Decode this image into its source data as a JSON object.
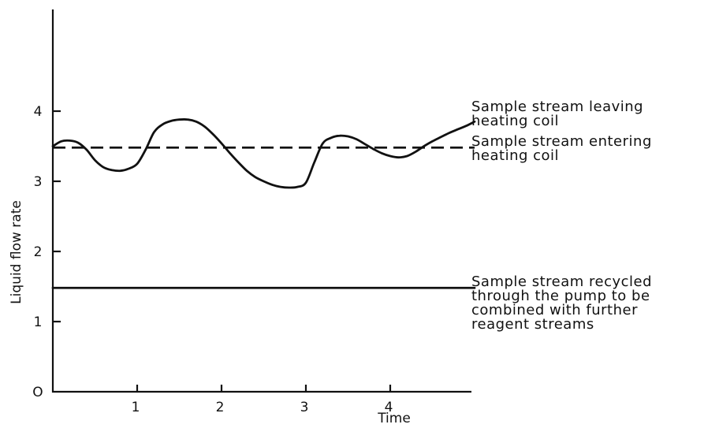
{
  "chart_data": {
    "type": "line",
    "xlabel": "Time",
    "ylabel": "Liquid flow rate",
    "xlim": [
      0,
      5
    ],
    "ylim": [
      0,
      5
    ],
    "x_ticks": [
      "1",
      "2",
      "3",
      "4"
    ],
    "y_ticks": [
      "O",
      "1",
      "2",
      "3",
      "4"
    ],
    "grid": false,
    "series": [
      {
        "name": "Sample stream leaving heating coil",
        "style": "solid",
        "x": [
          0,
          0.1,
          0.2,
          0.3,
          0.4,
          0.5,
          0.6,
          0.7,
          0.8,
          0.9,
          1.0,
          1.1,
          1.2,
          1.3,
          1.4,
          1.5,
          1.6,
          1.7,
          1.8,
          1.9,
          2.0,
          2.1,
          2.2,
          2.3,
          2.4,
          2.5,
          2.6,
          2.7,
          2.8,
          2.9,
          3.0,
          3.1,
          3.2,
          3.3,
          3.4,
          3.5,
          3.6,
          3.7,
          3.8,
          3.9,
          4.0,
          4.1,
          4.2,
          4.3,
          4.4,
          4.5,
          4.6,
          4.7,
          4.8,
          4.9,
          5.0
        ],
        "y": [
          3.5,
          3.57,
          3.58,
          3.55,
          3.45,
          3.3,
          3.2,
          3.16,
          3.15,
          3.18,
          3.25,
          3.45,
          3.7,
          3.81,
          3.86,
          3.88,
          3.88,
          3.85,
          3.78,
          3.67,
          3.54,
          3.4,
          3.27,
          3.15,
          3.06,
          3.0,
          2.95,
          2.92,
          2.91,
          2.92,
          2.98,
          3.27,
          3.54,
          3.62,
          3.65,
          3.64,
          3.6,
          3.53,
          3.46,
          3.4,
          3.36,
          3.34,
          3.36,
          3.42,
          3.5,
          3.57,
          3.63,
          3.69,
          3.74,
          3.79,
          3.85
        ]
      },
      {
        "name": "Sample stream entering heating coil",
        "style": "dashed",
        "x": [
          0,
          5
        ],
        "y": [
          3.48,
          3.48
        ]
      },
      {
        "name": "Sample stream recycled through the pump to be combined with further reagent streams",
        "style": "solid",
        "x": [
          0,
          5
        ],
        "y": [
          1.48,
          1.48
        ]
      }
    ],
    "annotations": [
      {
        "series": 0,
        "lines": [
          "Sample stream leaving",
          "heating coil"
        ]
      },
      {
        "series": 1,
        "lines": [
          "Sample stream entering",
          "heating coil"
        ]
      },
      {
        "series": 2,
        "lines": [
          "Sample stream recycled",
          "through the pump to be",
          "combined with further",
          "reagent streams"
        ]
      }
    ]
  }
}
